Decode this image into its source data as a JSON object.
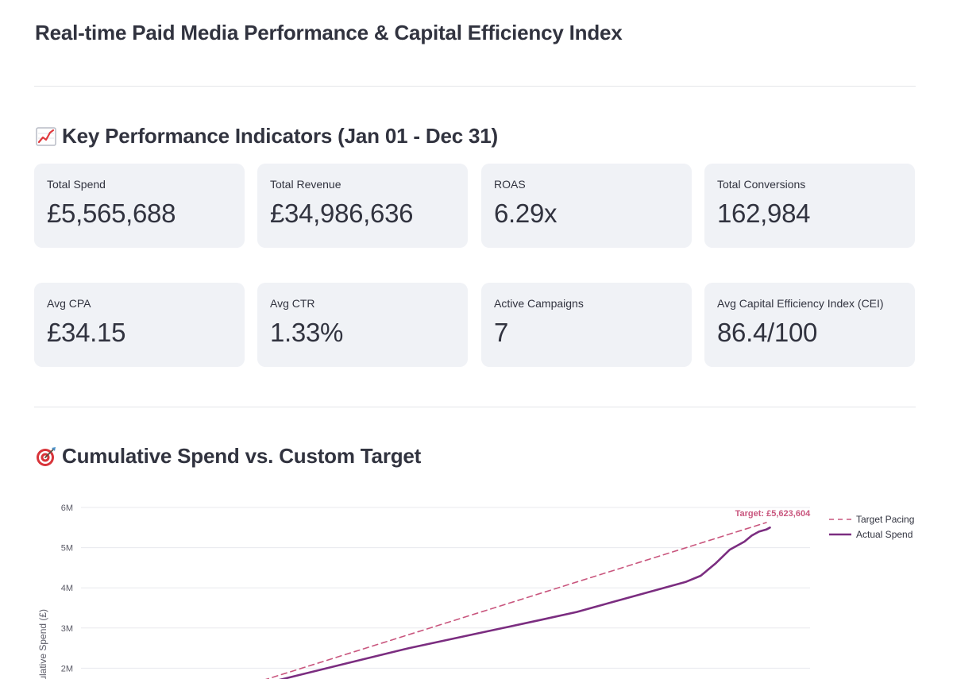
{
  "page": {
    "title": "Real-time Paid Media Performance & Capital Efficiency Index"
  },
  "kpi_section": {
    "title": "Key Performance Indicators (Jan 01 - Dec 31)",
    "icon": "chart-increasing-icon",
    "cards": [
      {
        "label": "Total Spend",
        "value": "£5,565,688"
      },
      {
        "label": "Total Revenue",
        "value": "£34,986,636"
      },
      {
        "label": "ROAS",
        "value": "6.29x"
      },
      {
        "label": "Total Conversions",
        "value": "162,984"
      },
      {
        "label": "Avg CPA",
        "value": "£34.15"
      },
      {
        "label": "Avg CTR",
        "value": "1.33%"
      },
      {
        "label": "Active Campaigns",
        "value": "7"
      },
      {
        "label": "Avg Capital Efficiency Index (CEI)",
        "value": "86.4/100"
      }
    ]
  },
  "spend_section": {
    "title": "Cumulative Spend vs. Custom Target",
    "icon": "direct-hit-target-icon"
  },
  "colors": {
    "card_bg": "#f0f2f6",
    "target_line": "#c9567e",
    "actual_line": "#7b2d80"
  },
  "chart_data": {
    "type": "line",
    "ylabel": "Cumulative Spend (£)",
    "ylim": [
      1800000,
      6000000
    ],
    "xlim": [
      0,
      100
    ],
    "yticks": [
      {
        "value": 2000000,
        "label": "2M"
      },
      {
        "value": 3000000,
        "label": "3M"
      },
      {
        "value": 4000000,
        "label": "4M"
      },
      {
        "value": 5000000,
        "label": "5M"
      },
      {
        "value": 6000000,
        "label": "6M"
      }
    ],
    "grid": true,
    "legend_position": "top-right",
    "annotation": {
      "text": "Target: £5,623,604",
      "x": 94,
      "y": 5623604
    },
    "series": [
      {
        "name": "Target Pacing",
        "style": "dashed",
        "color": "#c9567e",
        "points": [
          [
            25,
            1700000
          ],
          [
            94,
            5623604
          ]
        ]
      },
      {
        "name": "Actual Spend",
        "style": "solid",
        "color": "#7b2d80",
        "points": [
          [
            27,
            1700000
          ],
          [
            36,
            2100000
          ],
          [
            45,
            2500000
          ],
          [
            54,
            2850000
          ],
          [
            63,
            3200000
          ],
          [
            68,
            3400000
          ],
          [
            73,
            3650000
          ],
          [
            78,
            3900000
          ],
          [
            83,
            4150000
          ],
          [
            85,
            4300000
          ],
          [
            87,
            4600000
          ],
          [
            89,
            4950000
          ],
          [
            91,
            5150000
          ],
          [
            92,
            5300000
          ],
          [
            93,
            5400000
          ],
          [
            94,
            5450000
          ],
          [
            94.5,
            5500000
          ]
        ]
      }
    ]
  }
}
